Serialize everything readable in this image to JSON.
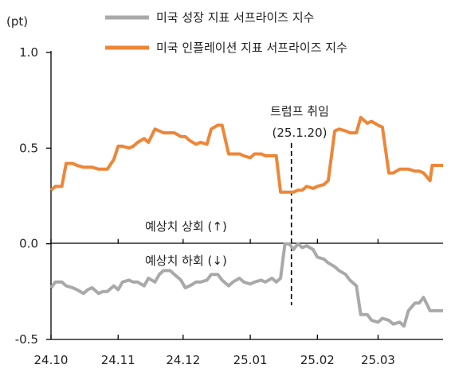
{
  "chart_data": {
    "type": "line",
    "unit_label": "(pt)",
    "ylim": [
      -0.5,
      1.0
    ],
    "y_ticks": [
      "1.0",
      "0.5",
      "0.0",
      "-0.5"
    ],
    "y_tick_values": [
      1.0,
      0.5,
      0.0,
      -0.5
    ],
    "xlim": [
      "2024-10-01",
      "2025-03-31"
    ],
    "x_ticks": [
      {
        "label": "24.10",
        "date": "2024-10-01"
      },
      {
        "label": "24.11",
        "date": "2024-11-01"
      },
      {
        "label": "24.12",
        "date": "2024-12-01"
      },
      {
        "label": "25.01",
        "date": "2025-01-01"
      },
      {
        "label": "25.02",
        "date": "2025-02-01"
      },
      {
        "label": "25.03",
        "date": "2025-03-01"
      }
    ],
    "legend_position": "top",
    "series": [
      {
        "name": "미국 성장 지표 서프라이즈 지수",
        "color": "#a9a9a9",
        "points": [
          [
            "2024-10-01",
            -0.23
          ],
          [
            "2024-10-03",
            -0.2
          ],
          [
            "2024-10-06",
            -0.2
          ],
          [
            "2024-10-08",
            -0.22
          ],
          [
            "2024-10-11",
            -0.23
          ],
          [
            "2024-10-13",
            -0.24
          ],
          [
            "2024-10-16",
            -0.26
          ],
          [
            "2024-10-18",
            -0.24
          ],
          [
            "2024-10-20",
            -0.23
          ],
          [
            "2024-10-23",
            -0.26
          ],
          [
            "2024-10-25",
            -0.25
          ],
          [
            "2024-10-27",
            -0.25
          ],
          [
            "2024-10-30",
            -0.22
          ],
          [
            "2024-11-01",
            -0.24
          ],
          [
            "2024-11-03",
            -0.2
          ],
          [
            "2024-11-06",
            -0.19
          ],
          [
            "2024-11-08",
            -0.2
          ],
          [
            "2024-11-10",
            -0.2
          ],
          [
            "2024-11-13",
            -0.22
          ],
          [
            "2024-11-15",
            -0.18
          ],
          [
            "2024-11-18",
            -0.2
          ],
          [
            "2024-11-20",
            -0.16
          ],
          [
            "2024-11-22",
            -0.14
          ],
          [
            "2024-11-25",
            -0.14
          ],
          [
            "2024-11-27",
            -0.16
          ],
          [
            "2024-11-30",
            -0.19
          ],
          [
            "2024-12-02",
            -0.23
          ],
          [
            "2024-12-04",
            -0.22
          ],
          [
            "2024-12-07",
            -0.2
          ],
          [
            "2024-12-09",
            -0.2
          ],
          [
            "2024-12-12",
            -0.19
          ],
          [
            "2024-12-14",
            -0.16
          ],
          [
            "2024-12-17",
            -0.16
          ],
          [
            "2024-12-19",
            -0.19
          ],
          [
            "2024-12-22",
            -0.22
          ],
          [
            "2024-12-24",
            -0.2
          ],
          [
            "2024-12-27",
            -0.18
          ],
          [
            "2024-12-29",
            -0.2
          ],
          [
            "2025-01-01",
            -0.21
          ],
          [
            "2025-01-03",
            -0.2
          ],
          [
            "2025-01-06",
            -0.19
          ],
          [
            "2025-01-08",
            -0.2
          ],
          [
            "2025-01-11",
            -0.18
          ],
          [
            "2025-01-13",
            -0.2
          ],
          [
            "2025-01-15",
            -0.18
          ],
          [
            "2025-01-17",
            0.0
          ],
          [
            "2025-01-19",
            0.0
          ],
          [
            "2025-01-21",
            -0.03
          ],
          [
            "2025-01-23",
            0.0
          ],
          [
            "2025-01-25",
            -0.02
          ],
          [
            "2025-01-27",
            -0.01
          ],
          [
            "2025-01-30",
            -0.03
          ],
          [
            "2025-02-01",
            -0.07
          ],
          [
            "2025-02-04",
            -0.08
          ],
          [
            "2025-02-06",
            -0.1
          ],
          [
            "2025-02-09",
            -0.12
          ],
          [
            "2025-02-11",
            -0.14
          ],
          [
            "2025-02-14",
            -0.16
          ],
          [
            "2025-02-16",
            -0.19
          ],
          [
            "2025-02-19",
            -0.22
          ],
          [
            "2025-02-21",
            -0.37
          ],
          [
            "2025-02-24",
            -0.37
          ],
          [
            "2025-02-26",
            -0.4
          ],
          [
            "2025-03-01",
            -0.41
          ],
          [
            "2025-03-03",
            -0.39
          ],
          [
            "2025-03-06",
            -0.4
          ],
          [
            "2025-03-08",
            -0.42
          ],
          [
            "2025-03-11",
            -0.41
          ],
          [
            "2025-03-13",
            -0.43
          ],
          [
            "2025-03-15",
            -0.35
          ],
          [
            "2025-03-18",
            -0.31
          ],
          [
            "2025-03-20",
            -0.31
          ],
          [
            "2025-03-22",
            -0.28
          ],
          [
            "2025-03-25",
            -0.35
          ],
          [
            "2025-03-28",
            -0.35
          ],
          [
            "2025-03-31",
            -0.35
          ]
        ]
      },
      {
        "name": "미국 인플레이션 지표 서프라이즈 지수",
        "color": "#ee8638",
        "points": [
          [
            "2024-10-01",
            0.28
          ],
          [
            "2024-10-03",
            0.3
          ],
          [
            "2024-10-06",
            0.3
          ],
          [
            "2024-10-08",
            0.42
          ],
          [
            "2024-10-11",
            0.42
          ],
          [
            "2024-10-13",
            0.41
          ],
          [
            "2024-10-16",
            0.4
          ],
          [
            "2024-10-18",
            0.4
          ],
          [
            "2024-10-20",
            0.4
          ],
          [
            "2024-10-23",
            0.39
          ],
          [
            "2024-10-25",
            0.39
          ],
          [
            "2024-10-27",
            0.39
          ],
          [
            "2024-10-30",
            0.44
          ],
          [
            "2024-11-01",
            0.51
          ],
          [
            "2024-11-03",
            0.51
          ],
          [
            "2024-11-06",
            0.5
          ],
          [
            "2024-11-08",
            0.51
          ],
          [
            "2024-11-10",
            0.53
          ],
          [
            "2024-11-13",
            0.55
          ],
          [
            "2024-11-15",
            0.53
          ],
          [
            "2024-11-18",
            0.6
          ],
          [
            "2024-11-20",
            0.59
          ],
          [
            "2024-11-22",
            0.58
          ],
          [
            "2024-11-25",
            0.58
          ],
          [
            "2024-11-27",
            0.58
          ],
          [
            "2024-11-30",
            0.56
          ],
          [
            "2024-12-02",
            0.56
          ],
          [
            "2024-12-04",
            0.54
          ],
          [
            "2024-12-07",
            0.52
          ],
          [
            "2024-12-09",
            0.53
          ],
          [
            "2024-12-12",
            0.52
          ],
          [
            "2024-12-14",
            0.6
          ],
          [
            "2024-12-17",
            0.62
          ],
          [
            "2024-12-19",
            0.62
          ],
          [
            "2024-12-22",
            0.47
          ],
          [
            "2024-12-24",
            0.47
          ],
          [
            "2024-12-27",
            0.47
          ],
          [
            "2024-12-29",
            0.46
          ],
          [
            "2025-01-01",
            0.45
          ],
          [
            "2025-01-03",
            0.47
          ],
          [
            "2025-01-06",
            0.47
          ],
          [
            "2025-01-08",
            0.46
          ],
          [
            "2025-01-11",
            0.46
          ],
          [
            "2025-01-13",
            0.46
          ],
          [
            "2025-01-15",
            0.27
          ],
          [
            "2025-01-17",
            0.27
          ],
          [
            "2025-01-19",
            0.27
          ],
          [
            "2025-01-21",
            0.27
          ],
          [
            "2025-01-23",
            0.28
          ],
          [
            "2025-01-25",
            0.28
          ],
          [
            "2025-01-27",
            0.3
          ],
          [
            "2025-01-30",
            0.29
          ],
          [
            "2025-02-01",
            0.3
          ],
          [
            "2025-02-04",
            0.31
          ],
          [
            "2025-02-06",
            0.33
          ],
          [
            "2025-02-09",
            0.59
          ],
          [
            "2025-02-11",
            0.6
          ],
          [
            "2025-02-14",
            0.59
          ],
          [
            "2025-02-16",
            0.58
          ],
          [
            "2025-02-19",
            0.58
          ],
          [
            "2025-02-21",
            0.66
          ],
          [
            "2025-02-24",
            0.63
          ],
          [
            "2025-02-26",
            0.64
          ],
          [
            "2025-03-01",
            0.62
          ],
          [
            "2025-03-03",
            0.61
          ],
          [
            "2025-03-06",
            0.37
          ],
          [
            "2025-03-08",
            0.37
          ],
          [
            "2025-03-11",
            0.39
          ],
          [
            "2025-03-13",
            0.39
          ],
          [
            "2025-03-15",
            0.39
          ],
          [
            "2025-03-18",
            0.38
          ],
          [
            "2025-03-20",
            0.38
          ],
          [
            "2025-03-22",
            0.37
          ],
          [
            "2025-03-25",
            0.33
          ],
          [
            "2025-03-26",
            0.41
          ],
          [
            "2025-03-31",
            0.41
          ]
        ]
      }
    ],
    "annotations": {
      "event_title": "트럼프 취임",
      "event_date_label": "(25.1.20)",
      "event_date": "2025-01-20",
      "above_zero_label": "예상치 상회 (↑)",
      "below_zero_label": "예상치 하회 (↓)"
    }
  }
}
